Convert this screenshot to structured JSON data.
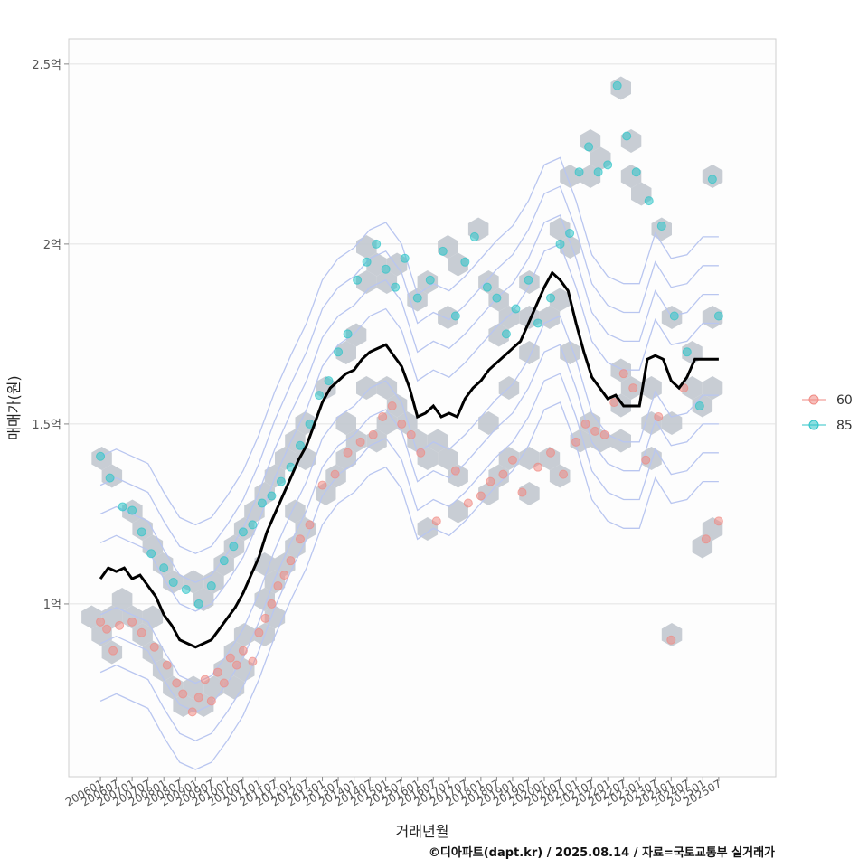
{
  "chart_data": {
    "type": "scatter",
    "xlabel": "거래년월",
    "ylabel": "매매가(원)",
    "caption": "©디아파트(dapt.kr) / 2025.08.14 / 자료=국토교통부 실거래가",
    "ylim": [
      0.52,
      2.57
    ],
    "y_ticks": [
      {
        "value": 1.0,
        "label": "1억"
      },
      {
        "value": 1.5,
        "label": "1.5억"
      },
      {
        "value": 2.0,
        "label": "2억"
      },
      {
        "value": 2.5,
        "label": "2.5억"
      }
    ],
    "x_range": [
      2005.0,
      2027.3
    ],
    "x_tick_labels": [
      "200601",
      "200607",
      "200701",
      "200707",
      "200801",
      "200807",
      "200901",
      "200907",
      "201001",
      "201007",
      "201101",
      "201107",
      "201201",
      "201207",
      "201301",
      "201307",
      "201401",
      "201407",
      "201501",
      "201507",
      "201601",
      "201607",
      "201701",
      "201707",
      "201801",
      "201807",
      "201901",
      "201907",
      "202001",
      "202007",
      "202101",
      "202107",
      "202201",
      "202207",
      "202301",
      "202307",
      "202401",
      "202407",
      "202501",
      "202507"
    ],
    "legend": [
      {
        "label": "60",
        "color": "#f08a83"
      },
      {
        "label": "85",
        "color": "#2ec4c8"
      }
    ],
    "series": [
      {
        "name": "moving-average",
        "color": "#000000",
        "x": [
          2006.0,
          2006.25,
          2006.5,
          2006.75,
          2007.0,
          2007.25,
          2007.5,
          2007.75,
          2008.0,
          2008.25,
          2008.5,
          2008.75,
          2009.0,
          2009.25,
          2009.5,
          2009.75,
          2010.0,
          2010.25,
          2010.5,
          2010.75,
          2011.0,
          2011.25,
          2011.5,
          2011.75,
          2012.0,
          2012.25,
          2012.5,
          2012.75,
          2013.0,
          2013.25,
          2013.5,
          2013.75,
          2014.0,
          2014.25,
          2014.5,
          2014.75,
          2015.0,
          2015.25,
          2015.5,
          2015.75,
          2016.0,
          2016.25,
          2016.5,
          2016.75,
          2017.0,
          2017.25,
          2017.5,
          2017.75,
          2018.0,
          2018.25,
          2018.5,
          2018.75,
          2019.0,
          2019.25,
          2019.5,
          2019.75,
          2020.0,
          2020.25,
          2020.5,
          2020.75,
          2021.0,
          2021.25,
          2021.5,
          2021.75,
          2022.0,
          2022.25,
          2022.5,
          2022.75,
          2023.0,
          2023.25,
          2023.5,
          2023.75,
          2024.0,
          2024.25,
          2024.5,
          2024.75,
          2025.0,
          2025.25,
          2025.5
        ],
        "values": [
          1.07,
          1.1,
          1.09,
          1.1,
          1.07,
          1.08,
          1.05,
          1.02,
          0.97,
          0.94,
          0.9,
          0.89,
          0.88,
          0.89,
          0.9,
          0.93,
          0.96,
          0.99,
          1.03,
          1.08,
          1.13,
          1.2,
          1.25,
          1.3,
          1.35,
          1.4,
          1.44,
          1.5,
          1.56,
          1.6,
          1.62,
          1.64,
          1.65,
          1.68,
          1.7,
          1.71,
          1.72,
          1.69,
          1.66,
          1.6,
          1.52,
          1.53,
          1.55,
          1.52,
          1.53,
          1.52,
          1.57,
          1.6,
          1.62,
          1.65,
          1.67,
          1.69,
          1.71,
          1.73,
          1.78,
          1.83,
          1.88,
          1.92,
          1.9,
          1.87,
          1.78,
          1.7,
          1.63,
          1.6,
          1.57,
          1.58,
          1.55,
          1.55,
          1.55,
          1.68,
          1.69,
          1.68,
          1.62,
          1.6,
          1.63,
          1.68,
          1.68,
          1.68,
          1.68
        ]
      },
      {
        "name": "60",
        "color": "#f08a83",
        "x": [
          2006.0,
          2006.2,
          2006.4,
          2006.6,
          2007.0,
          2007.3,
          2007.7,
          2008.1,
          2008.4,
          2008.6,
          2008.9,
          2009.1,
          2009.3,
          2009.5,
          2009.7,
          2009.9,
          2010.1,
          2010.3,
          2010.5,
          2010.8,
          2011.0,
          2011.2,
          2011.4,
          2011.6,
          2011.8,
          2012.0,
          2012.3,
          2012.6,
          2013.0,
          2013.4,
          2013.8,
          2014.2,
          2014.6,
          2014.9,
          2015.2,
          2015.5,
          2015.8,
          2016.1,
          2016.6,
          2017.2,
          2017.6,
          2018.0,
          2018.3,
          2018.7,
          2019.0,
          2019.3,
          2019.8,
          2020.2,
          2020.6,
          2021.0,
          2021.3,
          2021.6,
          2021.9,
          2022.2,
          2022.5,
          2022.8,
          2023.2,
          2023.6,
          2024.0,
          2024.4,
          2025.1,
          2025.5
        ],
        "values": [
          0.95,
          0.93,
          0.87,
          0.94,
          0.95,
          0.92,
          0.88,
          0.83,
          0.78,
          0.75,
          0.7,
          0.74,
          0.79,
          0.73,
          0.81,
          0.78,
          0.85,
          0.83,
          0.87,
          0.84,
          0.92,
          0.96,
          1.0,
          1.05,
          1.08,
          1.12,
          1.18,
          1.22,
          1.33,
          1.36,
          1.42,
          1.45,
          1.47,
          1.52,
          1.55,
          1.5,
          1.47,
          1.42,
          1.23,
          1.37,
          1.28,
          1.3,
          1.34,
          1.36,
          1.4,
          1.31,
          1.38,
          1.42,
          1.36,
          1.45,
          1.5,
          1.48,
          1.47,
          1.56,
          1.64,
          1.6,
          1.4,
          1.52,
          0.9,
          1.6,
          1.18,
          1.23
        ]
      },
      {
        "name": "85",
        "color": "#2ec4c8",
        "x": [
          2006.0,
          2006.3,
          2006.7,
          2007.0,
          2007.3,
          2007.6,
          2008.0,
          2008.3,
          2008.7,
          2009.1,
          2009.5,
          2009.9,
          2010.2,
          2010.5,
          2010.8,
          2011.1,
          2011.4,
          2011.7,
          2012.0,
          2012.3,
          2012.6,
          2012.9,
          2013.2,
          2013.5,
          2013.8,
          2014.1,
          2014.4,
          2014.7,
          2015.0,
          2015.3,
          2015.6,
          2016.0,
          2016.4,
          2016.8,
          2017.2,
          2017.5,
          2017.8,
          2018.2,
          2018.5,
          2018.8,
          2019.1,
          2019.5,
          2019.8,
          2020.2,
          2020.5,
          2020.8,
          2021.1,
          2021.4,
          2021.7,
          2022.0,
          2022.3,
          2022.6,
          2022.9,
          2023.3,
          2023.7,
          2024.1,
          2024.5,
          2024.9,
          2025.3,
          2025.5
        ],
        "values": [
          1.41,
          1.35,
          1.27,
          1.26,
          1.2,
          1.14,
          1.1,
          1.06,
          1.04,
          1.0,
          1.05,
          1.12,
          1.16,
          1.2,
          1.22,
          1.28,
          1.3,
          1.34,
          1.38,
          1.44,
          1.5,
          1.58,
          1.62,
          1.7,
          1.75,
          1.9,
          1.95,
          2.0,
          1.93,
          1.88,
          1.96,
          1.85,
          1.9,
          1.98,
          1.8,
          1.95,
          2.02,
          1.88,
          1.85,
          1.75,
          1.82,
          1.9,
          1.78,
          1.85,
          2.0,
          2.03,
          2.2,
          2.27,
          2.2,
          2.22,
          2.44,
          2.3,
          2.2,
          2.12,
          2.05,
          1.8,
          1.7,
          1.55,
          2.18,
          1.8
        ]
      }
    ]
  }
}
